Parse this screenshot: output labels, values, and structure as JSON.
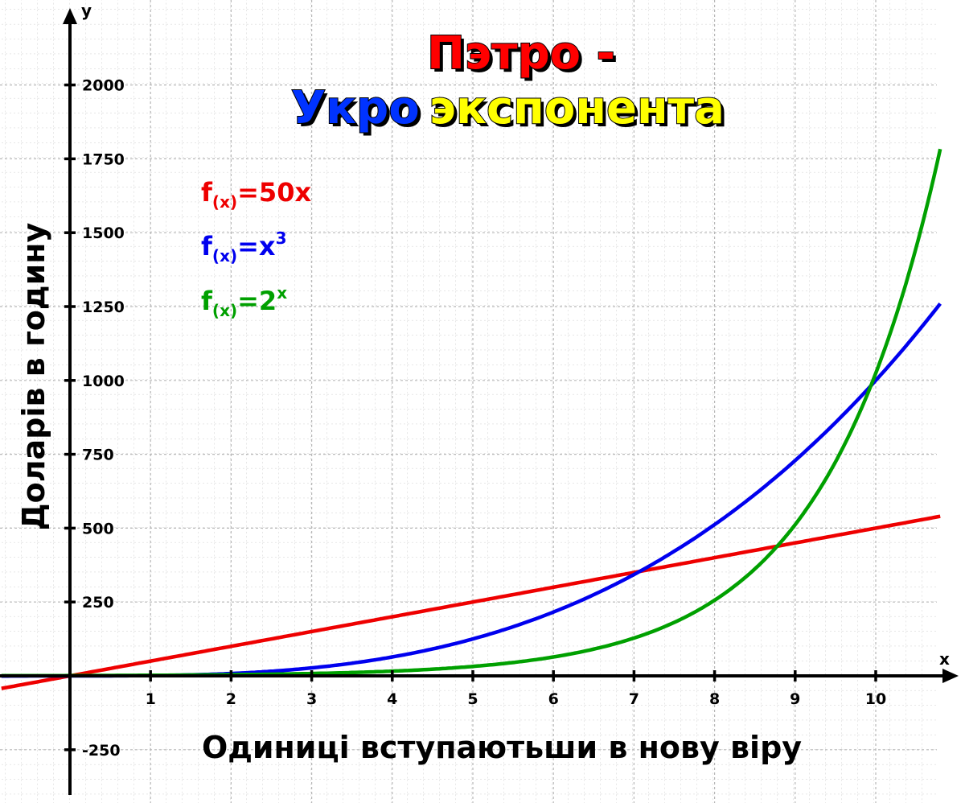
{
  "chart_data": {
    "type": "line",
    "title_line1": "Пэтро -",
    "title_line2_part1": "Укро",
    "title_line2_part2": "экспонента",
    "xlabel": "Одиниці  вступаютьши в нову віру",
    "ylabel": "Доларів в годину",
    "x_axis_name": "x",
    "y_axis_name": "y",
    "xlim": [
      -0.85,
      10.8
    ],
    "ylim": [
      -400,
      2270
    ],
    "x_ticks": [
      1,
      2,
      3,
      4,
      5,
      6,
      7,
      8,
      9,
      10
    ],
    "y_ticks": [
      -250,
      250,
      500,
      750,
      1000,
      1250,
      1500,
      1750,
      2000
    ],
    "grid": true,
    "colors": {
      "title_red": "#ff0000",
      "title_blue": "#0033ff",
      "title_yellow": "#ffff00"
    },
    "series": [
      {
        "formula_prefix": "f",
        "formula_sub": "(x)",
        "formula_main": "=50x",
        "formula_sup": "",
        "color": "#ee0000",
        "kind": "linear",
        "x": [
          -0.85,
          0,
          1,
          2,
          3,
          4,
          5,
          6,
          7,
          8,
          9,
          10,
          10.8
        ],
        "values": [
          -42.5,
          0,
          50,
          100,
          150,
          200,
          250,
          300,
          350,
          400,
          450,
          500,
          540
        ]
      },
      {
        "formula_prefix": "f",
        "formula_sub": "(x)",
        "formula_main": "=x",
        "formula_sup": "3",
        "color": "#0000ee",
        "kind": "cubic",
        "x": [
          0,
          1,
          2,
          3,
          4,
          5,
          6,
          7,
          8,
          9,
          10,
          10.8
        ],
        "values": [
          0,
          1,
          8,
          27,
          64,
          125,
          216,
          343,
          512,
          729,
          1000,
          1259.7
        ]
      },
      {
        "formula_prefix": "f",
        "formula_sub": "(x)",
        "formula_main": "=2",
        "formula_sup": "x",
        "color": "#00a000",
        "kind": "exp2",
        "x": [
          0,
          1,
          2,
          3,
          4,
          5,
          6,
          7,
          8,
          9,
          10,
          10.8
        ],
        "values": [
          1,
          2,
          4,
          8,
          16,
          32,
          64,
          128,
          256,
          512,
          1024,
          1782.9
        ]
      }
    ]
  }
}
